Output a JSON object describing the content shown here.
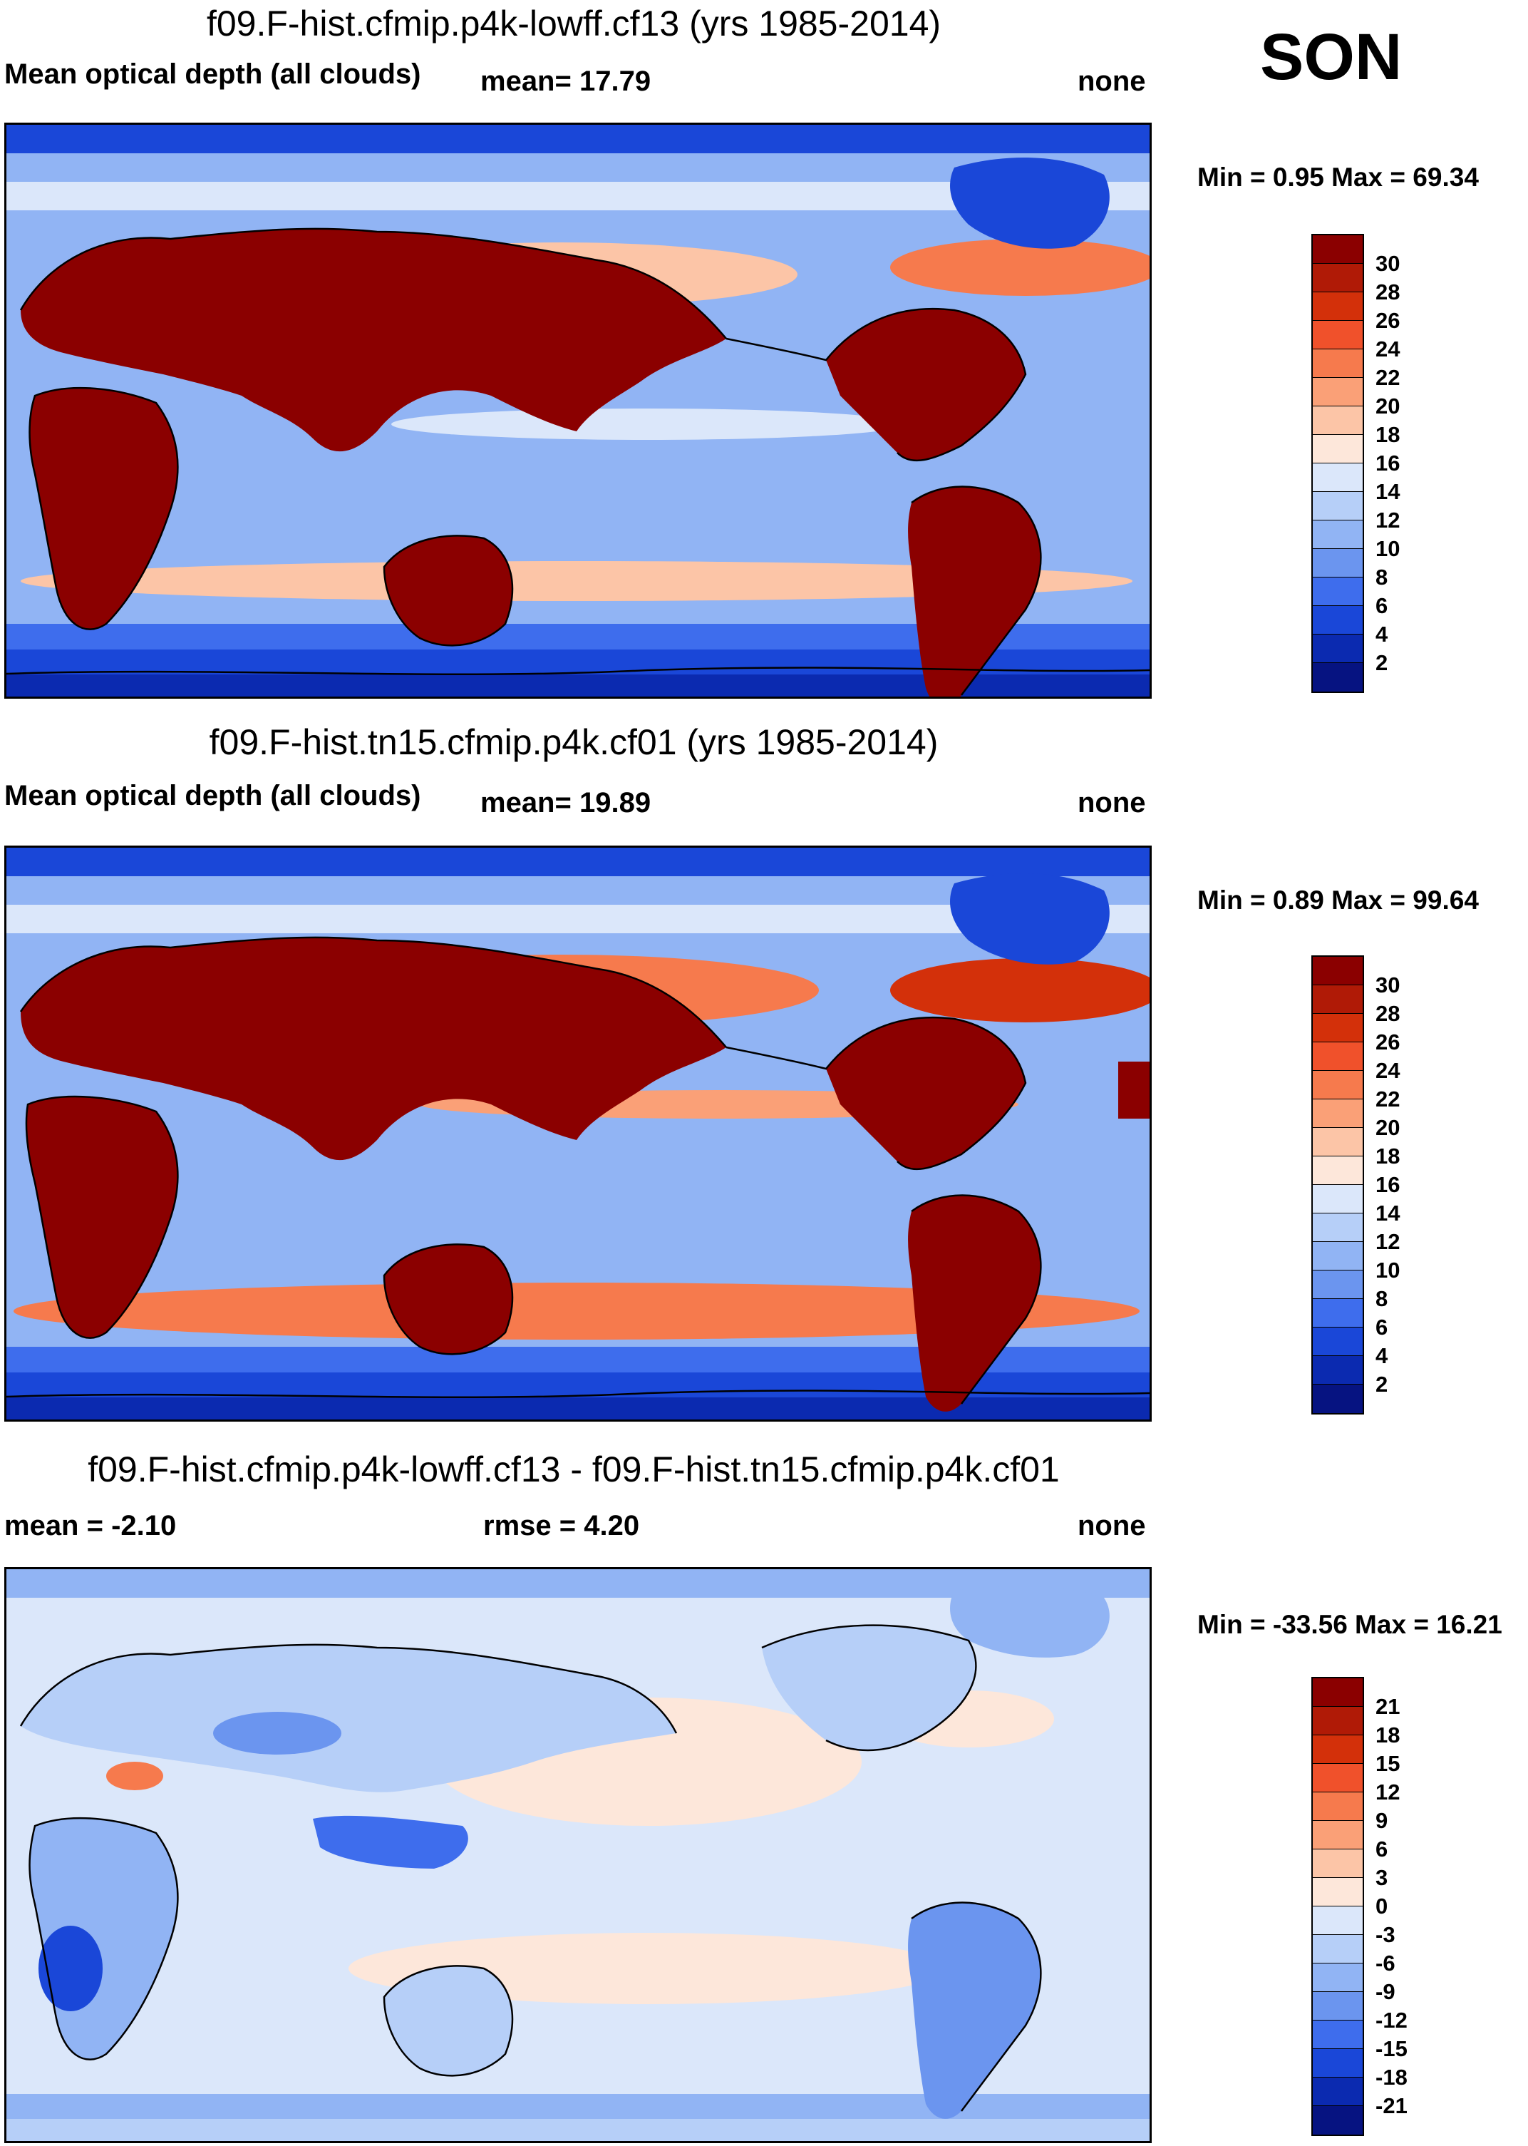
{
  "season": "SON",
  "panels": [
    {
      "title": "f09.F-hist.cfmip.p4k-lowff.cf13 (yrs 1985-2014)",
      "left_label": "Mean optical depth (all clouds)",
      "mid_label": "mean=  17.79",
      "right_label": "none",
      "minmax": "Min =   0.95 Max =  69.34",
      "scale": {
        "labels": [
          "30",
          "28",
          "26",
          "24",
          "22",
          "20",
          "18",
          "16",
          "14",
          "12",
          "10",
          "8",
          "6",
          "4",
          "2"
        ],
        "colors": [
          "#8b0000",
          "#b01a06",
          "#d3300a",
          "#f0512b",
          "#f67a4d",
          "#faa077",
          "#fcc5a7",
          "#fde7da",
          "#dbe7fa",
          "#b6cff8",
          "#91b4f4",
          "#6b95ef",
          "#3e6ded",
          "#1a47d8",
          "#0b2ab0",
          "#061381"
        ]
      },
      "field_bands": [
        "#0b2ab0",
        "#1a47d8",
        "#3e6ded",
        "#91b4f4",
        "#b6cff8",
        "#dbe7fa",
        "#fcc5a7"
      ]
    },
    {
      "title": "f09.F-hist.tn15.cfmip.p4k.cf01 (yrs 1985-2014)",
      "left_label": "Mean optical depth (all clouds)",
      "mid_label": "mean=  19.89",
      "right_label": "none",
      "minmax": "Min =   0.89 Max =  99.64",
      "scale": {
        "labels": [
          "30",
          "28",
          "26",
          "24",
          "22",
          "20",
          "18",
          "16",
          "14",
          "12",
          "10",
          "8",
          "6",
          "4",
          "2"
        ],
        "colors": [
          "#8b0000",
          "#b01a06",
          "#d3300a",
          "#f0512b",
          "#f67a4d",
          "#faa077",
          "#fcc5a7",
          "#fde7da",
          "#dbe7fa",
          "#b6cff8",
          "#91b4f4",
          "#6b95ef",
          "#3e6ded",
          "#1a47d8",
          "#0b2ab0",
          "#061381"
        ]
      },
      "field_bands": [
        "#0b2ab0",
        "#1a47d8",
        "#3e6ded",
        "#91b4f4",
        "#fcc5a7",
        "#dbe7fa",
        "#faa077"
      ]
    },
    {
      "title": "f09.F-hist.cfmip.p4k-lowff.cf13 - f09.F-hist.tn15.cfmip.p4k.cf01",
      "left_label": "mean =  -2.10",
      "mid_label": "rmse =    4.20",
      "right_label": "none",
      "minmax": "Min = -33.56 Max =  16.21",
      "scale": {
        "labels": [
          "21",
          "18",
          "15",
          "12",
          "9",
          "6",
          "3",
          "0",
          "-3",
          "-6",
          "-9",
          "-12",
          "-15",
          "-18",
          "-21"
        ],
        "colors": [
          "#8b0000",
          "#b01a06",
          "#d3300a",
          "#f0512b",
          "#f67a4d",
          "#faa077",
          "#fcc5a7",
          "#fde7da",
          "#dbe7fa",
          "#b6cff8",
          "#91b4f4",
          "#6b95ef",
          "#3e6ded",
          "#1a47d8",
          "#0b2ab0",
          "#061381"
        ]
      },
      "field_bands": [
        "#b6cff8",
        "#91b4f4",
        "#dbe7fa",
        "#dbe7fa",
        "#fde7da",
        "#dbe7fa",
        "#b6cff8"
      ]
    }
  ]
}
